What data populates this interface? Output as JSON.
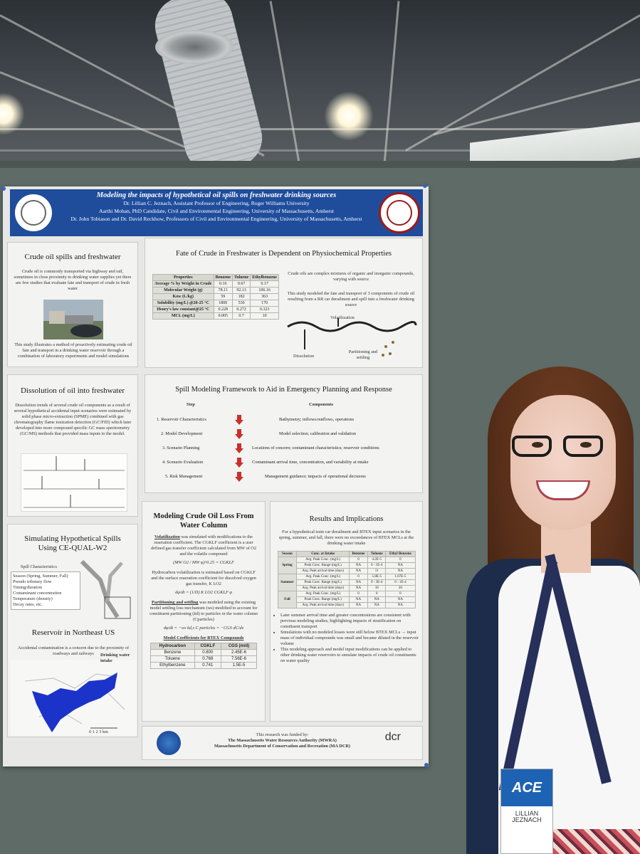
{
  "poster": {
    "title": "Modeling the impacts of hypothetical oil spills on freshwater drinking sources",
    "authors": [
      "Dr. Lillian C. Jeznach, Assistant Professor of Engineering, Roger Williams University",
      "Aarthi Mohan, PhD Candidate, Civil and Environmental Engineering, University of Massachusetts, Amherst",
      "Dr. John Tobiason and Dr. David Reckhow, Professors of Civil and Environmental Engineering, University of Massachusetts, Amherst"
    ],
    "crude": {
      "title": "Crude oil spills and freshwater",
      "text1": "Crude oil is commonly transported via highway and rail, sometimes in close proximity to drinking water supplies yet there are few studies that evaluate fate and transport of crude in fresh water",
      "text2": "This study illustrates a method of proactively estimating crude oil fate and transport in a drinking water reservoir through a combination of laboratory experiments and model simulations"
    },
    "fate": {
      "title": "Fate of Crude in Freshwater is Dependent on Physiochemical Properties",
      "headers": [
        "Properties",
        "Benzene",
        "Toluene",
        "Ethylbenzene"
      ],
      "rows": [
        [
          "Average % by Weight in Crude",
          "0.16",
          "0.67",
          "0.17"
        ],
        [
          "Molecular Weight (g)",
          "78.11",
          "92.13",
          "106.16"
        ],
        [
          "Kow (L/kg)",
          "59",
          "182",
          "363"
        ],
        [
          "Solubility (mg/L) @20-25 °C",
          "1800",
          "530",
          "170"
        ],
        [
          "Henry's law constant@25 °C",
          "0.228",
          "0.272",
          "0.323"
        ],
        [
          "MCL (mg/L)",
          "0.005",
          "0.7",
          "10"
        ]
      ],
      "text1": "Crude oils are complex mixtures of organic and inorganic compounds, varying with source",
      "text2": "This study modeled the fate and transport of 3 components of crude oil resulting from a RR car derailment and spill into a freshwater drinking source",
      "volatilization": "Volatilization",
      "dissolution": "Dissolution",
      "partitioning": "Partitioning and settling"
    },
    "dissolution": {
      "title": "Dissolution of oil into freshwater",
      "text": "Dissolution trends of several crude oil components as a result of several hypothetical accidental input scenarios were estimated by solid phase micro-extraction (SPME) combined with gas chromatography flame ionization detection (GC/FID) which later developed into more compound specific GC mass spectrometry (GC/MS) methods that provided mass inputs to the model."
    },
    "framework": {
      "title": "Spill Modeling Framework to Aid in Emergency Planning and Response",
      "step_header": "Step",
      "components_header": "Components",
      "steps": [
        {
          "step": "1. Reservoir Characteristics",
          "component": "Bathymetry; inflows/outflows, operations"
        },
        {
          "step": "2. Model Development",
          "component": "Model selection; calibration and validation"
        },
        {
          "step": "3. Scenario Planning",
          "component": "Locations of concern; contaminant characteristics; reservoir conditions"
        },
        {
          "step": "4. Scenario Evaluation",
          "component": "Contaminant arrival time, concentration, and variability at intake"
        },
        {
          "step": "5. Risk Management",
          "component": "Management guidance; impacts of operational decisions"
        }
      ]
    },
    "simulating": {
      "title": "Simulating Hypothetical Spills Using CE-QUAL-W2",
      "list_title": "Spill Characteristics",
      "items": [
        "Season (Spring, Summer, Fall)",
        "Pseudo tributary flow",
        "Timing/duration",
        "Contaminant concentration",
        "Temperature (density)",
        "Decay rates, etc."
      ]
    },
    "reservoir": {
      "title": "Reservoir in Northeast US",
      "text": "Accidental contamination is a concern due to the proximity of roadways and railways",
      "intake_label": "Drinking water intake",
      "scale_label": "0 1 2 3 km"
    },
    "modeling": {
      "title": "Modeling Crude Oil Loss From Water Column",
      "volatilization_head": "Volatilization",
      "text1": " was simulated with modifications to the reaeration coefficient. The CGKLF coefficient is a user defined gas transfer coefficient calculated from MW of O2 and the volatile compound",
      "text2": "Hydrocarbon volatilization is estimated based on CGKLF and the surface reaeration coefficient for dissolved oxygen gas transfer, K LO2",
      "partition_head": "Partitioning and settling",
      "text3": " was modeled using the existing model settling loss mechanism (ws) modified to account for constituent partitioning (kd) to particles in the water column (Cparticles)",
      "coef_title": "Model Coefficients for BTEX Compounds",
      "coef_headers": [
        "Hydrocarbon",
        "CGKLF",
        "CGS (m/d)"
      ],
      "coef_rows": [
        [
          "Benzene",
          "0.800",
          "2.45E-6"
        ],
        [
          "Toluene",
          "0.768",
          "7.56E-6"
        ],
        [
          "Ethylbenzene",
          "0.741",
          "1.5E-5"
        ]
      ]
    },
    "results": {
      "title": "Results and Implications",
      "text": "For a hypothetical train car derailment and BTEX input scenarios in the spring, summer, and fall, there were no exceedances of BTEX MCLs at the drinking water intake",
      "headers": [
        "Season",
        "Conc. at Intake",
        "Benzene",
        "Toluene",
        "Ethyl Benzene"
      ],
      "groups": [
        {
          "season": "Spring",
          "rows": [
            [
              "Avg. Peak Conc. (mg/L)",
              "0",
              "4.2E-5",
              "0"
            ],
            [
              "Peak Conc. Range (mg/L)",
              "NA",
              "0 - 1E-4",
              "NA"
            ],
            [
              "Avg. Peak arrival time (days)",
              "NA",
              "11",
              "NA"
            ]
          ]
        },
        {
          "season": "Summer",
          "rows": [
            [
              "Avg. Peak Conc. (mg/L)",
              "0",
              "5.8E-5",
              "1.67E-5"
            ],
            [
              "Peak Conc. Range (mg/L)",
              "NA",
              "0 - 3E-4",
              "0 - 1E-4"
            ],
            [
              "Avg. Peak arrival time (days)",
              "NA",
              "18",
              "20"
            ]
          ]
        },
        {
          "season": "Fall",
          "rows": [
            [
              "Avg. Peak Conc. (mg/L)",
              "0",
              "0",
              "0"
            ],
            [
              "Peak Conc. Range (mg/L)",
              "NA",
              "NA",
              "NA"
            ],
            [
              "Avg. Peak arrival time (days)",
              "NA",
              "NA",
              "NA"
            ]
          ]
        }
      ],
      "bullets": [
        "Later summer arrival time and greater concentrations are consistent with previous modeling studies, highlighting impacts of stratification on constituent transport",
        "Simulations with no modeled losses were still below BTEX MCLs → input mass of individual compounds was small and became diluted in the reservoir volume",
        "This modeling approach and model input modifications can be applied to other drinking water reservoirs to simulate impacts of crude oil constituents on water quality"
      ]
    },
    "funding": {
      "line1": "This research was funded by:",
      "line2": "The Massachusetts Water Resources Authority (MWRA)",
      "line3": "Massachusetts Department of Conservation and Recreation (MA DCR)",
      "dcr_logo": "dcr"
    }
  },
  "badge": {
    "logo": "ACE",
    "first_name": "LILLIAN",
    "last_name": "JEZNACH"
  },
  "colors": {
    "header_blue": "#1f4d9c",
    "arrow_red": "#c9302c",
    "reservoir_blue": "#1c33c9"
  }
}
